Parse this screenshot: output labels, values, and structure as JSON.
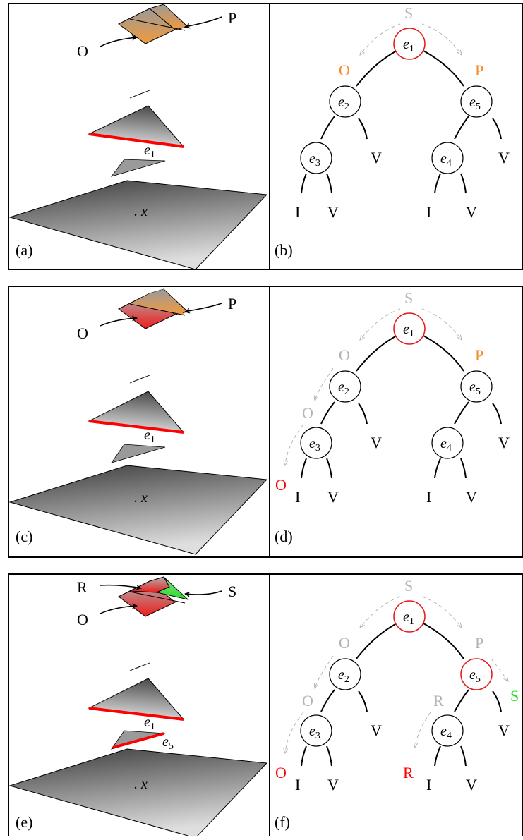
{
  "labels": {
    "x_point": ". x",
    "edge_e1": "e1",
    "edge_e5": "e5"
  },
  "panels": [
    {
      "id": "row1",
      "scene": {
        "label": "(a)",
        "pointer_left": "O",
        "pointer_right": "P"
      },
      "tree": {
        "label": "(b)",
        "nodes": [
          "e1",
          "e2",
          "e3",
          "e4",
          "e5"
        ],
        "leaves": [
          "I",
          "V",
          "V",
          "I",
          "V",
          "V"
        ],
        "traversal": [
          {
            "text": "S",
            "state": "start"
          },
          {
            "text": "O",
            "state": "active"
          },
          {
            "text": "P",
            "state": "active"
          }
        ]
      }
    },
    {
      "id": "row2",
      "scene": {
        "label": "(c)",
        "pointer_left": "O",
        "pointer_right": "P"
      },
      "tree": {
        "label": "(d)",
        "nodes": [
          "e1",
          "e2",
          "e3",
          "e4",
          "e5"
        ],
        "leaves": [
          "I",
          "V",
          "V",
          "I",
          "V",
          "V"
        ],
        "traversal": [
          {
            "text": "S",
            "state": "visited"
          },
          {
            "text": "O",
            "state": "visited"
          },
          {
            "text": "P",
            "state": "active"
          },
          {
            "text": "O",
            "state": "visited"
          },
          {
            "text": "O",
            "state": "inside"
          }
        ]
      }
    },
    {
      "id": "row3",
      "scene": {
        "label": "(e)",
        "pointer_left": "O",
        "pointer_right": "S",
        "pointer_top": "R"
      },
      "tree": {
        "label": "(f)",
        "nodes": [
          "e1",
          "e2",
          "e3",
          "e4",
          "e5"
        ],
        "leaves": [
          "I",
          "V",
          "V",
          "I",
          "V",
          "V"
        ],
        "traversal": [
          {
            "text": "S",
            "state": "visited"
          },
          {
            "text": "O",
            "state": "visited"
          },
          {
            "text": "P",
            "state": "visited"
          },
          {
            "text": "O",
            "state": "visited"
          },
          {
            "text": "R",
            "state": "visited"
          },
          {
            "text": "S",
            "state": "outside"
          },
          {
            "text": "O",
            "state": "inside"
          },
          {
            "text": "R",
            "state": "inside"
          }
        ]
      }
    }
  ],
  "colors": {
    "active": "#f28c28",
    "visited": "#b3b3b3",
    "inside": "#ff0000",
    "outside": "#22dd22",
    "split_edge": "#ff0000",
    "node_visited": "#e21b1b",
    "ink": "#000000"
  }
}
